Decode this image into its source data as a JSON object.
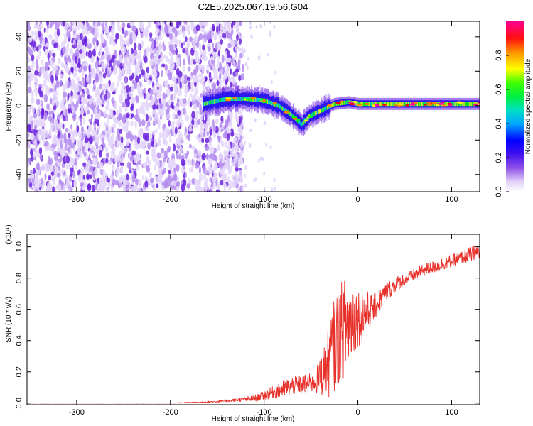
{
  "title": "C2E5.2025.067.19.56.G04",
  "chart_data": [
    {
      "type": "heatmap",
      "xlabel": "Height of straight line (km)",
      "ylabel": "Frequency (Hz)",
      "xlim": [
        -353,
        130
      ],
      "ylim": [
        -50,
        49
      ],
      "xticks": [
        -300,
        -200,
        -100,
        0,
        100
      ],
      "yticks": [
        -40,
        -20,
        0,
        20,
        40
      ],
      "noise_region_x": [
        -353,
        -130
      ],
      "signal_start_x": -165,
      "signal_ridge": [
        {
          "x": -165,
          "y": 1
        },
        {
          "x": -140,
          "y": 4
        },
        {
          "x": -120,
          "y": 4
        },
        {
          "x": -100,
          "y": 3
        },
        {
          "x": -85,
          "y": 0
        },
        {
          "x": -72,
          "y": -5
        },
        {
          "x": -60,
          "y": -11
        },
        {
          "x": -52,
          "y": -6
        },
        {
          "x": -40,
          "y": -3
        },
        {
          "x": -25,
          "y": 1
        },
        {
          "x": -10,
          "y": 2
        },
        {
          "x": 0,
          "y": 1
        },
        {
          "x": 20,
          "y": 1
        },
        {
          "x": 60,
          "y": 1
        },
        {
          "x": 100,
          "y": 1
        },
        {
          "x": 130,
          "y": 1
        }
      ],
      "colorbar": {
        "label": "Normalized spectral amplitude",
        "range": [
          0,
          1
        ],
        "ticks": [
          0.0,
          0.2,
          0.4,
          0.6,
          0.8
        ],
        "colors": [
          "#ffffff",
          "#e8d8fa",
          "#7030e0",
          "#0000ff",
          "#00b8ff",
          "#00e0a0",
          "#00ff00",
          "#ffff00",
          "#ff8000",
          "#ff0000",
          "#ff00a0"
        ]
      },
      "grid": false,
      "legend": "none"
    },
    {
      "type": "line",
      "xlabel": "Height of straight line (km)",
      "ylabel": "SNR (10 * v/v)",
      "y_multiplier": "(x10⁴)",
      "xlim": [
        -353,
        130
      ],
      "ylim": [
        -0.01,
        1.08
      ],
      "xticks": [
        -300,
        -200,
        -100,
        0,
        100
      ],
      "yticks": [
        0.0,
        0.2,
        0.4,
        0.6,
        0.8,
        1.0
      ],
      "line_color": "#e8302a",
      "series": [
        {
          "x": [
            -353,
            -300,
            -250,
            -200,
            -170,
            -150,
            -130,
            -110,
            -100,
            -90,
            -80,
            -70,
            -60,
            -50,
            -45,
            -40,
            -35,
            -30,
            -25,
            -20,
            -15,
            -10,
            -5,
            0,
            5,
            10,
            15,
            20,
            25,
            30,
            40,
            50,
            60,
            70,
            80,
            90,
            100,
            110,
            120,
            130
          ],
          "y": [
            0.0,
            0.0,
            0.0,
            0.0,
            0.005,
            0.01,
            0.02,
            0.03,
            0.05,
            0.07,
            0.09,
            0.11,
            0.12,
            0.13,
            0.14,
            0.17,
            0.21,
            0.28,
            0.38,
            0.44,
            0.48,
            0.51,
            0.54,
            0.56,
            0.57,
            0.58,
            0.6,
            0.63,
            0.67,
            0.71,
            0.76,
            0.79,
            0.82,
            0.85,
            0.87,
            0.89,
            0.91,
            0.93,
            0.95,
            0.97
          ],
          "spread": [
            0.002,
            0.002,
            0.002,
            0.002,
            0.004,
            0.006,
            0.01,
            0.02,
            0.03,
            0.04,
            0.06,
            0.06,
            0.06,
            0.06,
            0.08,
            0.12,
            0.18,
            0.24,
            0.3,
            0.32,
            0.32,
            0.3,
            0.25,
            0.2,
            0.18,
            0.14,
            0.1,
            0.08,
            0.07,
            0.06,
            0.05,
            0.04,
            0.04,
            0.04,
            0.04,
            0.04,
            0.04,
            0.04,
            0.05,
            0.06
          ]
        }
      ],
      "grid": false,
      "legend": "none"
    }
  ]
}
